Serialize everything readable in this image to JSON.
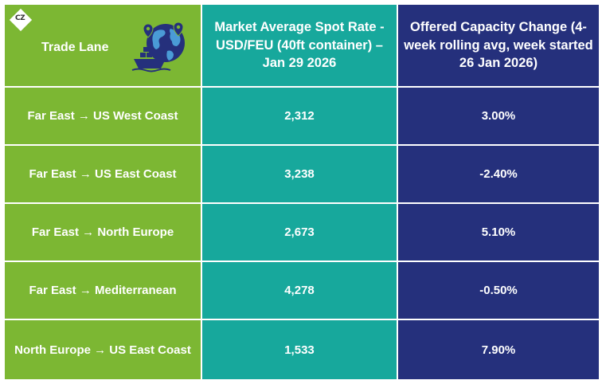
{
  "logo": {
    "text": "CZ"
  },
  "headers": {
    "lane": "Trade Lane",
    "rate": "Market Average Spot Rate - USD/FEU (40ft container) – Jan 29 2026",
    "capacity": "Offered Capacity Change (4-week rolling avg, week started 26 Jan 2026)"
  },
  "rows": [
    {
      "lane": "Far East → US West Coast",
      "rate": "2,312",
      "capacity": "3.00%"
    },
    {
      "lane": "Far East → US East Coast",
      "rate": "3,238",
      "capacity": "-2.40%"
    },
    {
      "lane": "Far East → North Europe",
      "rate": "2,673",
      "capacity": "5.10%"
    },
    {
      "lane": "Far East → Mediterranean",
      "rate": "4,278",
      "capacity": "-0.50%"
    },
    {
      "lane": "North Europe → US East Coast",
      "rate": "1,533",
      "capacity": "7.90%"
    }
  ],
  "colors": {
    "lane": "#7cb733",
    "rate": "#17a89c",
    "capacity": "#25307c"
  }
}
